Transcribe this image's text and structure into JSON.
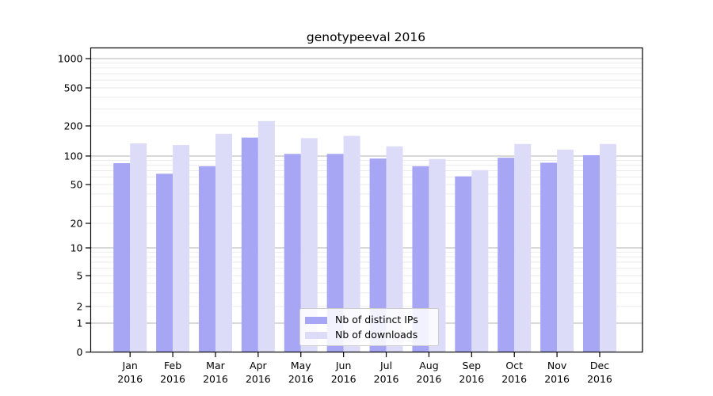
{
  "chart_data": {
    "type": "bar",
    "title": "genotypeeval 2016",
    "categories": [
      {
        "line1": "Jan",
        "line2": "2016"
      },
      {
        "line1": "Feb",
        "line2": "2016"
      },
      {
        "line1": "Mar",
        "line2": "2016"
      },
      {
        "line1": "Apr",
        "line2": "2016"
      },
      {
        "line1": "May",
        "line2": "2016"
      },
      {
        "line1": "Jun",
        "line2": "2016"
      },
      {
        "line1": "Jul",
        "line2": "2016"
      },
      {
        "line1": "Aug",
        "line2": "2016"
      },
      {
        "line1": "Sep",
        "line2": "2016"
      },
      {
        "line1": "Oct",
        "line2": "2016"
      },
      {
        "line1": "Nov",
        "line2": "2016"
      },
      {
        "line1": "Dec",
        "line2": "2016"
      }
    ],
    "series": [
      {
        "name": "Nb of distinct IPs",
        "color": "#a6a6f4",
        "values": [
          84,
          65,
          78,
          153,
          105,
          105,
          94,
          78,
          61,
          96,
          85,
          102
        ]
      },
      {
        "name": "Nb of downloads",
        "color": "#dcdcf9",
        "values": [
          134,
          129,
          167,
          225,
          151,
          159,
          125,
          93,
          71,
          132,
          116,
          132
        ]
      }
    ],
    "yscale": "symlog",
    "yticks": [
      0,
      1,
      2,
      5,
      10,
      20,
      50,
      100,
      200,
      500,
      1000
    ],
    "ylim": [
      0,
      1300
    ],
    "xlabel": "",
    "ylabel": "",
    "grid": true,
    "major_grid_values": [
      1,
      10,
      100,
      1000
    ],
    "legend_position": "lower-center"
  },
  "colors": {
    "major_grid": "#b3b3b3",
    "minor_grid": "#ebebeb",
    "spine": "#000000",
    "tick_label": "#000000"
  }
}
